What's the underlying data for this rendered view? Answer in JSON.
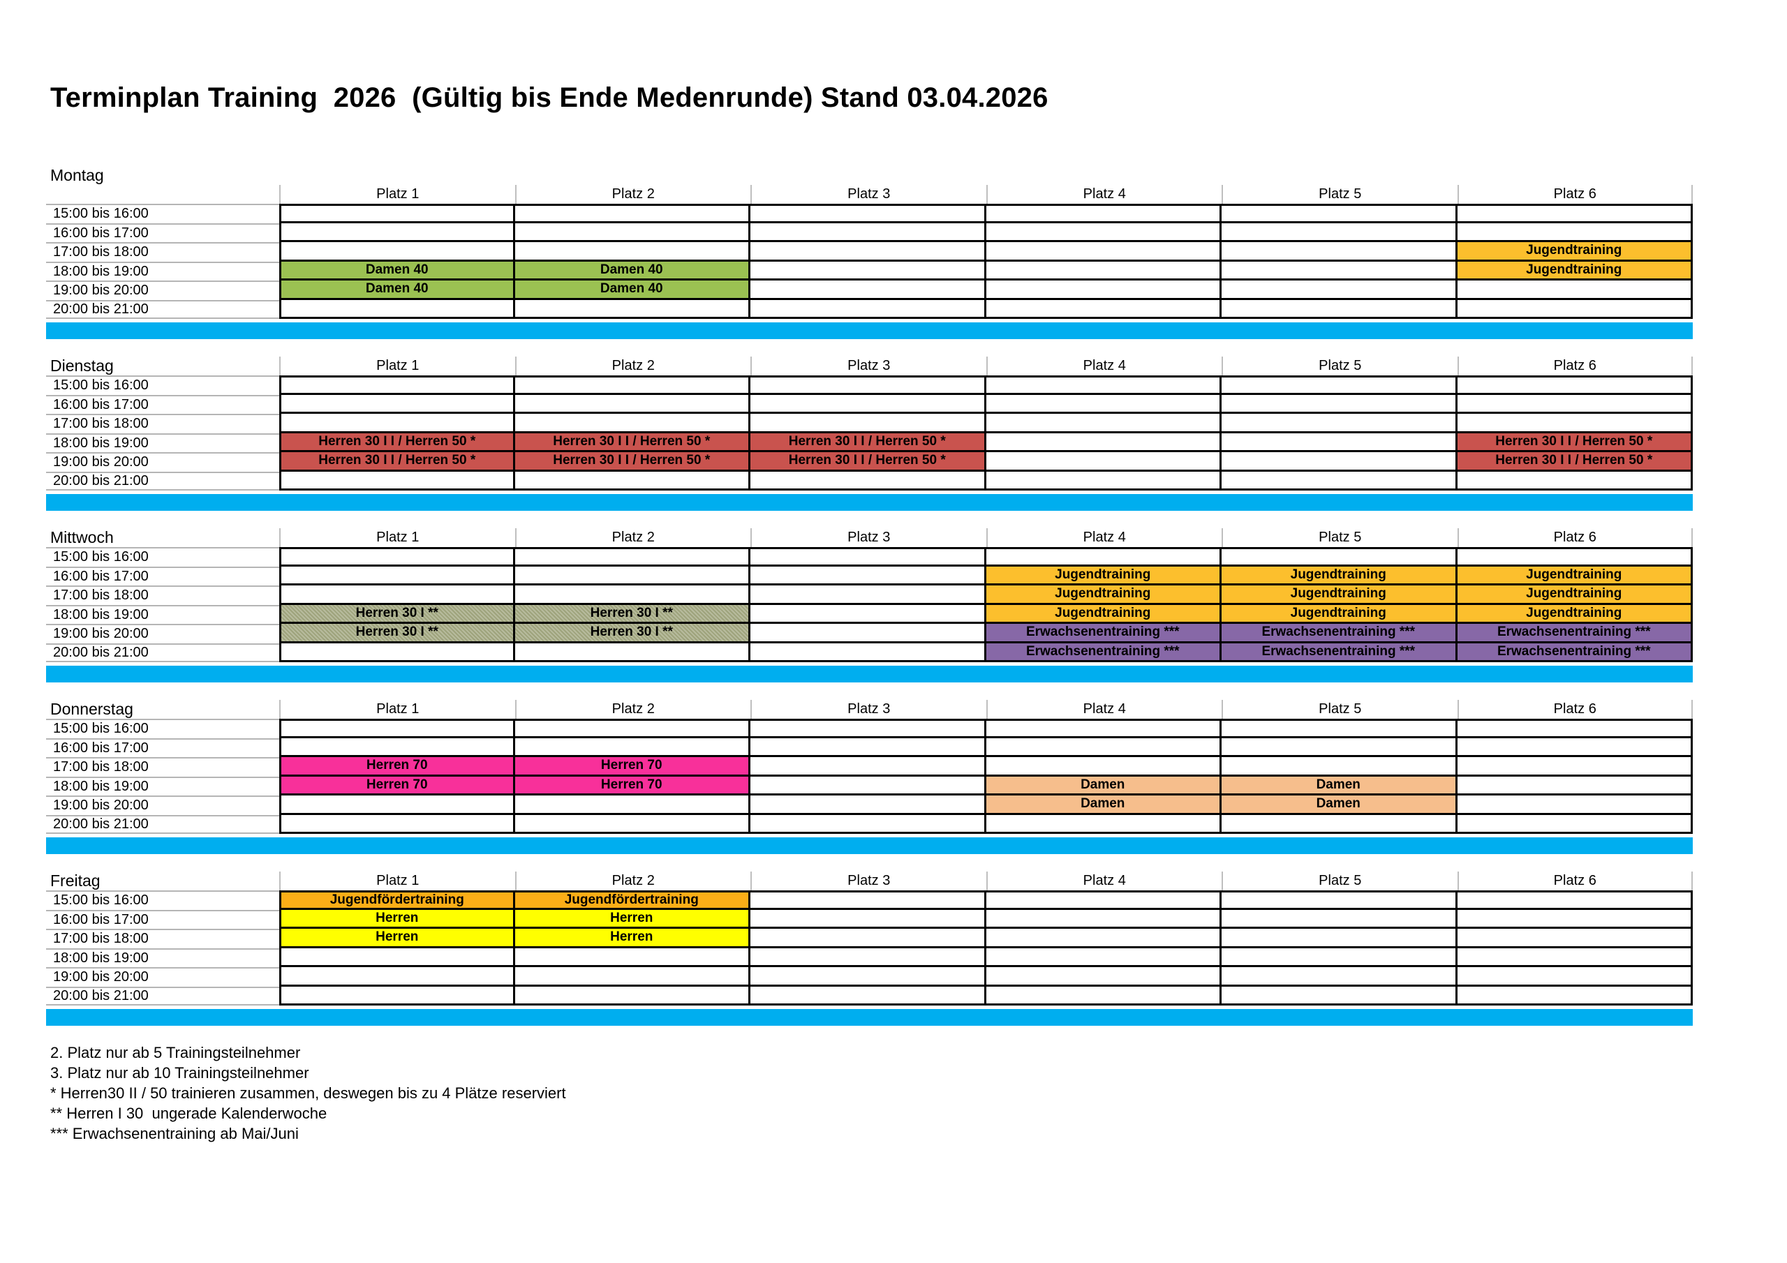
{
  "title": "Terminplan Training  2026  (Gültig bis Ende Medenrunde) Stand 03.04.2026",
  "columns": [
    "Platz 1",
    "Platz 2",
    "Platz 3",
    "Platz 4",
    "Platz 5",
    "Platz 6"
  ],
  "times": [
    "15:00 bis 16:00",
    "16:00 bis 17:00",
    "17:00 bis 18:00",
    "18:00 bis 19:00",
    "19:00 bis 20:00",
    "20:00 bis 21:00"
  ],
  "divider_color": "#00AEEF",
  "grid_line_color": "#B5B5B5",
  "header_line_color": "#BFBFBF",
  "border_color": "#000000",
  "activities": {
    "damen40": {
      "label": "Damen 40",
      "color": "#9BC152"
    },
    "jugend": {
      "label": "Jugendtraining",
      "color": "#FCBF2D"
    },
    "herren3050": {
      "label": "Herren 30 I I / Herren 50 *",
      "color": "#C9534E"
    },
    "herren30I": {
      "label": "Herren 30 I **",
      "color": "#ABAF8C",
      "pattern": {
        "a": "#9EA37C",
        "b": "#B7BB9D"
      }
    },
    "erwachsene": {
      "label": "Erwachsenentraining ***",
      "color": "#8768A7"
    },
    "herren70": {
      "label": "Herren 70",
      "color": "#F8309A"
    },
    "damen": {
      "label": "Damen",
      "color": "#F6BE8C"
    },
    "jugendfoerder": {
      "label": "Jugendfördertraining",
      "color": "#FBAE17"
    },
    "herren": {
      "label": "Herren",
      "color": "#FFFF00"
    }
  },
  "days": [
    {
      "name": "Montag",
      "label_above": true,
      "grid": [
        [
          null,
          null,
          null,
          null,
          null,
          null
        ],
        [
          null,
          null,
          null,
          null,
          null,
          null
        ],
        [
          null,
          null,
          null,
          null,
          null,
          "jugend"
        ],
        [
          "damen40",
          "damen40",
          null,
          null,
          null,
          "jugend"
        ],
        [
          "damen40",
          "damen40",
          null,
          null,
          null,
          null
        ],
        [
          null,
          null,
          null,
          null,
          null,
          null
        ]
      ]
    },
    {
      "name": "Dienstag",
      "label_above": false,
      "grid": [
        [
          null,
          null,
          null,
          null,
          null,
          null
        ],
        [
          null,
          null,
          null,
          null,
          null,
          null
        ],
        [
          null,
          null,
          null,
          null,
          null,
          null
        ],
        [
          "herren3050",
          "herren3050",
          "herren3050",
          null,
          null,
          "herren3050"
        ],
        [
          "herren3050",
          "herren3050",
          "herren3050",
          null,
          null,
          "herren3050"
        ],
        [
          null,
          null,
          null,
          null,
          null,
          null
        ]
      ]
    },
    {
      "name": "Mittwoch",
      "label_above": false,
      "grid": [
        [
          null,
          null,
          null,
          null,
          null,
          null
        ],
        [
          null,
          null,
          null,
          "jugend",
          "jugend",
          "jugend"
        ],
        [
          null,
          null,
          null,
          "jugend",
          "jugend",
          "jugend"
        ],
        [
          "herren30I",
          "herren30I",
          null,
          "jugend",
          "jugend",
          "jugend"
        ],
        [
          "herren30I",
          "herren30I",
          null,
          "erwachsene",
          "erwachsene",
          "erwachsene"
        ],
        [
          null,
          null,
          null,
          "erwachsene",
          "erwachsene",
          "erwachsene"
        ]
      ]
    },
    {
      "name": "Donnerstag",
      "label_above": false,
      "grid": [
        [
          null,
          null,
          null,
          null,
          null,
          null
        ],
        [
          null,
          null,
          null,
          null,
          null,
          null
        ],
        [
          "herren70",
          "herren70",
          null,
          null,
          null,
          null
        ],
        [
          "herren70",
          "herren70",
          null,
          "damen",
          "damen",
          null
        ],
        [
          null,
          null,
          null,
          "damen",
          "damen",
          null
        ],
        [
          null,
          null,
          null,
          null,
          null,
          null
        ]
      ]
    },
    {
      "name": "Freitag",
      "label_above": false,
      "grid": [
        [
          "jugendfoerder",
          "jugendfoerder",
          null,
          null,
          null,
          null
        ],
        [
          "herren",
          "herren",
          null,
          null,
          null,
          null
        ],
        [
          "herren",
          "herren",
          null,
          null,
          null,
          null
        ],
        [
          null,
          null,
          null,
          null,
          null,
          null
        ],
        [
          null,
          null,
          null,
          null,
          null,
          null
        ],
        [
          null,
          null,
          null,
          null,
          null,
          null
        ]
      ]
    }
  ],
  "notes": [
    "2. Platz nur ab 5 Trainingsteilnehmer",
    "3. Platz nur ab 10 Trainingsteilnehmer",
    "* Herren30 II / 50 trainieren zusammen, deswegen bis zu 4 Plätze reserviert",
    "** Herren I 30  ungerade Kalenderwoche",
    "*** Erwachsenentraining ab Mai/Juni"
  ]
}
